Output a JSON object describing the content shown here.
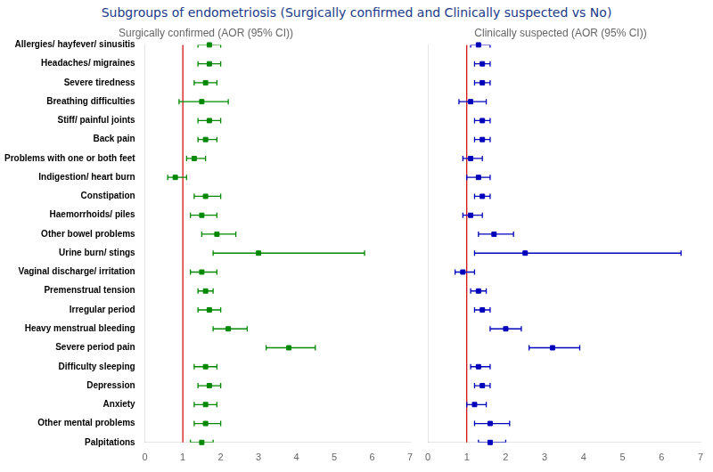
{
  "chart_data": {
    "type": "forest",
    "title": "Subgroups of endometriosis (Surgically confirmed and Clinically suspected vs No)",
    "title_color": "#1a3a8a",
    "orientation": "horizontal",
    "categories": [
      "Allergies/ hayfever/ sinusitis",
      "Headaches/ migraines",
      "Severe tiredness",
      "Breathing difficulties",
      "Stiff/ painful joints",
      "Back pain",
      "Problems with one or both feet",
      "Indigestion/ heart burn",
      "Constipation",
      "Haemorrhoids/ piles",
      "Other bowel problems",
      "Urine burn/ stings",
      "Vaginal discharge/ irritation",
      "Premenstrual tension",
      "Irregular period",
      "Heavy menstrual bleeding",
      "Severe period pain",
      "Difficulty sleeping",
      "Depression",
      "Anxiety",
      "Other mental problems",
      "Palpitations"
    ],
    "series": [
      {
        "name": "Surgically confirmed (AOR (95% CI))",
        "color": "#008800",
        "marker": "square",
        "values": [
          1.7,
          1.7,
          1.6,
          1.5,
          1.7,
          1.6,
          1.3,
          0.8,
          1.6,
          1.5,
          1.9,
          3.0,
          1.5,
          1.6,
          1.7,
          2.2,
          3.8,
          1.6,
          1.7,
          1.6,
          1.6,
          1.5
        ],
        "lower": [
          1.4,
          1.4,
          1.3,
          0.9,
          1.4,
          1.4,
          1.1,
          0.6,
          1.3,
          1.2,
          1.5,
          1.8,
          1.2,
          1.4,
          1.4,
          1.8,
          3.2,
          1.3,
          1.4,
          1.3,
          1.3,
          1.2
        ],
        "upper": [
          2.0,
          2.0,
          1.9,
          2.2,
          2.0,
          1.9,
          1.6,
          1.1,
          2.0,
          1.9,
          2.4,
          5.8,
          1.9,
          1.8,
          2.0,
          2.7,
          4.5,
          1.9,
          2.0,
          1.9,
          2.0,
          1.8
        ]
      },
      {
        "name": "Clinically suspected (AOR (95% CI))",
        "color": "#0000bb",
        "marker": "square",
        "values": [
          1.3,
          1.4,
          1.4,
          1.1,
          1.4,
          1.4,
          1.1,
          1.3,
          1.4,
          1.1,
          1.7,
          2.5,
          0.9,
          1.3,
          1.4,
          2.0,
          3.2,
          1.3,
          1.4,
          1.2,
          1.6,
          1.6
        ],
        "lower": [
          1.1,
          1.2,
          1.2,
          0.8,
          1.2,
          1.2,
          0.9,
          1.0,
          1.2,
          0.9,
          1.3,
          1.2,
          0.7,
          1.1,
          1.2,
          1.6,
          2.6,
          1.1,
          1.2,
          1.0,
          1.2,
          1.3
        ],
        "upper": [
          1.6,
          1.6,
          1.6,
          1.5,
          1.6,
          1.6,
          1.4,
          1.6,
          1.6,
          1.4,
          2.2,
          6.5,
          1.2,
          1.5,
          1.6,
          2.4,
          3.9,
          1.6,
          1.6,
          1.5,
          2.1,
          2.0
        ]
      }
    ],
    "reference_line": {
      "x": 1,
      "color": "#cc0000"
    },
    "xlim": [
      0,
      7
    ],
    "xticks": [
      0,
      1,
      2,
      3,
      4,
      5,
      6,
      7
    ],
    "grid": false,
    "legend": false
  }
}
